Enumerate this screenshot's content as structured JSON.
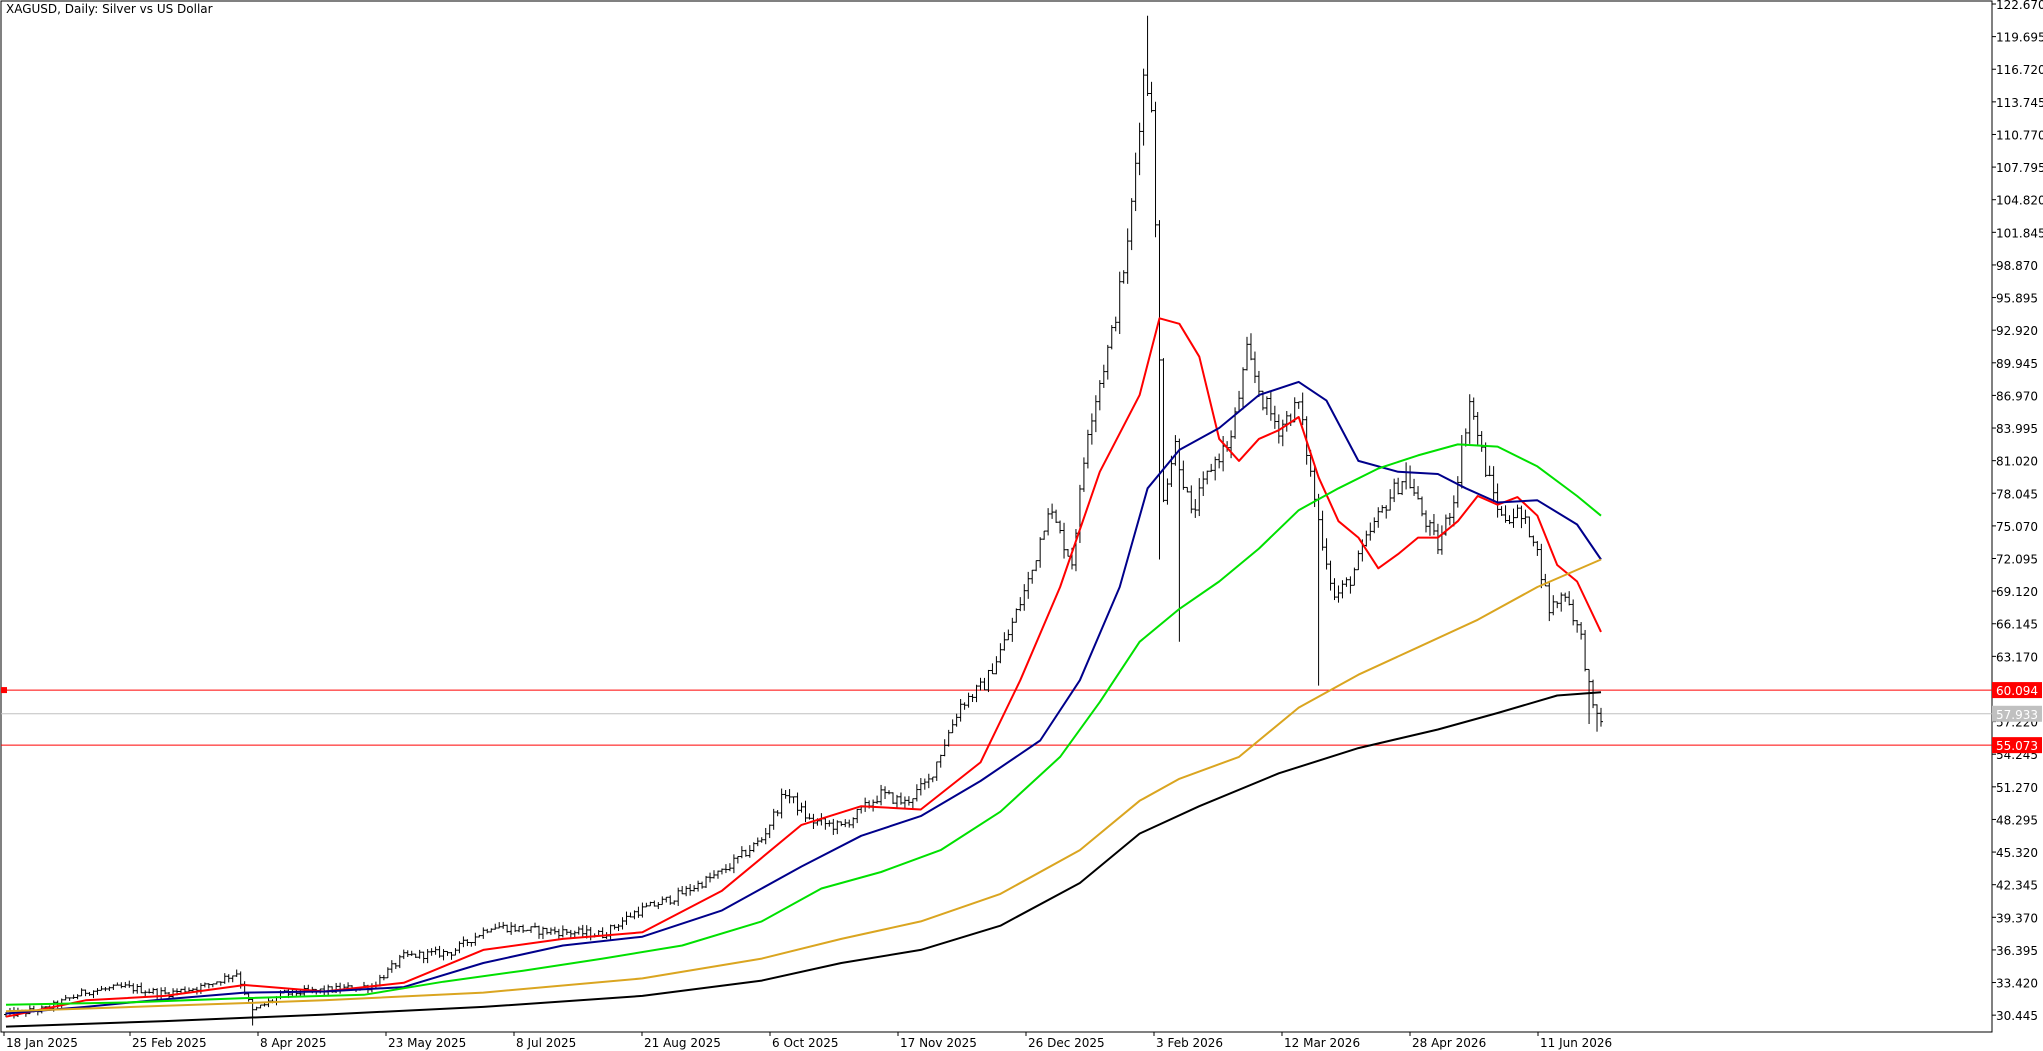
{
  "chart_data": {
    "type": "candlestick-ohlc",
    "title": "XAGUSD, Daily:  Silver vs US Dollar",
    "x_labels": [
      "18 Jan 2025",
      "25 Feb 2025",
      "8 Apr 2025",
      "23 May 2025",
      "8 Jul 2025",
      "21 Aug 2025",
      "6 Oct 2025",
      "17 Nov 2025",
      "26 Dec 2025",
      "3 Feb 2026",
      "12 Mar 2026",
      "28 Apr 2026",
      "11 Jun 2026"
    ],
    "y_ticks": [
      "122.670",
      "119.695",
      "116.720",
      "113.745",
      "110.770",
      "107.795",
      "104.820",
      "101.845",
      "98.870",
      "95.895",
      "92.920",
      "89.945",
      "86.970",
      "83.995",
      "81.020",
      "78.045",
      "75.070",
      "72.095",
      "69.120",
      "66.145",
      "63.170",
      "60.194",
      "57.220",
      "54.245",
      "51.270",
      "48.295",
      "45.320",
      "42.345",
      "39.370",
      "36.395",
      "33.420",
      "30.445"
    ],
    "ylim": [
      29.0,
      122.67
    ],
    "grid": false,
    "price_points": [
      {
        "i": 0,
        "p": 30.5
      },
      {
        "i": 10,
        "p": 31.0
      },
      {
        "i": 20,
        "p": 32.6
      },
      {
        "i": 30,
        "p": 33.0
      },
      {
        "i": 40,
        "p": 32.4
      },
      {
        "i": 50,
        "p": 33.1
      },
      {
        "i": 58,
        "p": 34.3
      },
      {
        "i": 62,
        "p": 30.8
      },
      {
        "i": 70,
        "p": 32.4
      },
      {
        "i": 80,
        "p": 32.7
      },
      {
        "i": 92,
        "p": 33.1
      },
      {
        "i": 100,
        "p": 35.8
      },
      {
        "i": 112,
        "p": 36.2
      },
      {
        "i": 122,
        "p": 38.6
      },
      {
        "i": 132,
        "p": 38.2
      },
      {
        "i": 142,
        "p": 38.0
      },
      {
        "i": 150,
        "p": 37.8
      },
      {
        "i": 158,
        "p": 39.8
      },
      {
        "i": 168,
        "p": 41.2
      },
      {
        "i": 180,
        "p": 43.5
      },
      {
        "i": 190,
        "p": 46.5
      },
      {
        "i": 196,
        "p": 50.8
      },
      {
        "i": 202,
        "p": 48.2
      },
      {
        "i": 210,
        "p": 47.6
      },
      {
        "i": 220,
        "p": 50.6
      },
      {
        "i": 226,
        "p": 49.8
      },
      {
        "i": 232,
        "p": 51.8
      },
      {
        "i": 240,
        "p": 58.8
      },
      {
        "i": 246,
        "p": 60.6
      },
      {
        "i": 252,
        "p": 65.2
      },
      {
        "i": 258,
        "p": 71.0
      },
      {
        "i": 262,
        "p": 76.8
      },
      {
        "i": 268,
        "p": 71.8
      },
      {
        "i": 272,
        "p": 84.0
      },
      {
        "i": 278,
        "p": 92.5
      },
      {
        "i": 282,
        "p": 100.5
      },
      {
        "i": 286,
        "p": 116.0
      },
      {
        "i": 288,
        "p": 114.0
      },
      {
        "i": 291,
        "p": 78.0
      },
      {
        "i": 294,
        "p": 82.5
      },
      {
        "i": 298,
        "p": 76.0
      },
      {
        "i": 303,
        "p": 80.5
      },
      {
        "i": 308,
        "p": 83.0
      },
      {
        "i": 312,
        "p": 90.8
      },
      {
        "i": 316,
        "p": 86.5
      },
      {
        "i": 320,
        "p": 84.0
      },
      {
        "i": 325,
        "p": 86.2
      },
      {
        "i": 330,
        "p": 75.5
      },
      {
        "i": 334,
        "p": 68.5
      },
      {
        "i": 338,
        "p": 70.2
      },
      {
        "i": 343,
        "p": 74.5
      },
      {
        "i": 348,
        "p": 77.8
      },
      {
        "i": 352,
        "p": 79.8
      },
      {
        "i": 356,
        "p": 76.2
      },
      {
        "i": 360,
        "p": 73.2
      },
      {
        "i": 364,
        "p": 77.5
      },
      {
        "i": 368,
        "p": 86.5
      },
      {
        "i": 372,
        "p": 80.2
      },
      {
        "i": 376,
        "p": 75.8
      },
      {
        "i": 380,
        "p": 76.2
      },
      {
        "i": 384,
        "p": 74.2
      },
      {
        "i": 388,
        "p": 67.5
      },
      {
        "i": 392,
        "p": 69.0
      },
      {
        "i": 396,
        "p": 64.8
      },
      {
        "i": 399,
        "p": 58.2
      },
      {
        "i": 401,
        "p": 57.5
      }
    ],
    "moving_averages": [
      {
        "color": "#ff0000",
        "points": [
          [
            0,
            30.3
          ],
          [
            20,
            31.8
          ],
          [
            40,
            32.2
          ],
          [
            60,
            33.2
          ],
          [
            80,
            32.6
          ],
          [
            100,
            33.4
          ],
          [
            120,
            36.4
          ],
          [
            140,
            37.4
          ],
          [
            160,
            38.0
          ],
          [
            180,
            41.8
          ],
          [
            200,
            47.8
          ],
          [
            215,
            49.5
          ],
          [
            230,
            49.2
          ],
          [
            245,
            53.5
          ],
          [
            255,
            61.0
          ],
          [
            265,
            69.5
          ],
          [
            275,
            80.0
          ],
          [
            285,
            87.0
          ],
          [
            290,
            94.0
          ],
          [
            295,
            93.5
          ],
          [
            300,
            90.5
          ],
          [
            305,
            83.0
          ],
          [
            310,
            81.0
          ],
          [
            315,
            83.0
          ],
          [
            320,
            83.8
          ],
          [
            325,
            85.0
          ],
          [
            330,
            79.5
          ],
          [
            335,
            75.5
          ],
          [
            340,
            74.0
          ],
          [
            345,
            71.2
          ],
          [
            350,
            72.5
          ],
          [
            355,
            74.0
          ],
          [
            360,
            74.0
          ],
          [
            365,
            75.5
          ],
          [
            370,
            77.8
          ],
          [
            375,
            77.0
          ],
          [
            380,
            77.7
          ],
          [
            385,
            76.0
          ],
          [
            390,
            71.5
          ],
          [
            395,
            70.0
          ],
          [
            401,
            65.4
          ]
        ]
      },
      {
        "color": "#00008b",
        "points": [
          [
            0,
            30.6
          ],
          [
            20,
            31.2
          ],
          [
            40,
            31.9
          ],
          [
            60,
            32.5
          ],
          [
            80,
            32.6
          ],
          [
            100,
            33.0
          ],
          [
            120,
            35.2
          ],
          [
            140,
            36.8
          ],
          [
            160,
            37.6
          ],
          [
            180,
            40.0
          ],
          [
            200,
            44.0
          ],
          [
            215,
            46.8
          ],
          [
            230,
            48.6
          ],
          [
            245,
            51.8
          ],
          [
            260,
            55.5
          ],
          [
            270,
            61.0
          ],
          [
            280,
            69.5
          ],
          [
            287,
            78.5
          ],
          [
            295,
            82.0
          ],
          [
            305,
            84.0
          ],
          [
            315,
            87.0
          ],
          [
            325,
            88.2
          ],
          [
            332,
            86.5
          ],
          [
            340,
            81.0
          ],
          [
            350,
            80.0
          ],
          [
            360,
            79.8
          ],
          [
            367,
            78.5
          ],
          [
            375,
            77.2
          ],
          [
            385,
            77.4
          ],
          [
            395,
            75.2
          ],
          [
            401,
            72.0
          ]
        ]
      },
      {
        "color": "#00e000",
        "points": [
          [
            0,
            31.4
          ],
          [
            30,
            31.6
          ],
          [
            60,
            32.0
          ],
          [
            90,
            32.3
          ],
          [
            110,
            33.5
          ],
          [
            130,
            34.5
          ],
          [
            150,
            35.6
          ],
          [
            170,
            36.8
          ],
          [
            190,
            39.0
          ],
          [
            205,
            42.0
          ],
          [
            220,
            43.5
          ],
          [
            235,
            45.5
          ],
          [
            250,
            49.0
          ],
          [
            265,
            54.0
          ],
          [
            275,
            59.0
          ],
          [
            285,
            64.5
          ],
          [
            295,
            67.5
          ],
          [
            305,
            70.0
          ],
          [
            315,
            73.0
          ],
          [
            325,
            76.5
          ],
          [
            335,
            78.5
          ],
          [
            345,
            80.3
          ],
          [
            355,
            81.5
          ],
          [
            365,
            82.5
          ],
          [
            375,
            82.3
          ],
          [
            385,
            80.5
          ],
          [
            395,
            77.8
          ],
          [
            401,
            76.0
          ]
        ]
      },
      {
        "color": "#daa520",
        "points": [
          [
            0,
            30.8
          ],
          [
            40,
            31.3
          ],
          [
            80,
            31.8
          ],
          [
            120,
            32.5
          ],
          [
            160,
            33.8
          ],
          [
            190,
            35.6
          ],
          [
            210,
            37.4
          ],
          [
            230,
            39.0
          ],
          [
            250,
            41.5
          ],
          [
            270,
            45.5
          ],
          [
            285,
            50.0
          ],
          [
            295,
            52.0
          ],
          [
            310,
            54.0
          ],
          [
            325,
            58.5
          ],
          [
            340,
            61.5
          ],
          [
            355,
            64.0
          ],
          [
            370,
            66.5
          ],
          [
            385,
            69.5
          ],
          [
            401,
            72.0
          ]
        ]
      },
      {
        "color": "#000000",
        "points": [
          [
            0,
            29.4
          ],
          [
            40,
            29.9
          ],
          [
            80,
            30.5
          ],
          [
            120,
            31.2
          ],
          [
            160,
            32.2
          ],
          [
            190,
            33.6
          ],
          [
            210,
            35.2
          ],
          [
            230,
            36.4
          ],
          [
            250,
            38.6
          ],
          [
            270,
            42.5
          ],
          [
            285,
            47.0
          ],
          [
            300,
            49.5
          ],
          [
            320,
            52.5
          ],
          [
            340,
            54.8
          ],
          [
            360,
            56.5
          ],
          [
            375,
            58.0
          ],
          [
            390,
            59.6
          ],
          [
            401,
            59.9
          ]
        ]
      }
    ],
    "horizontal_lines": [
      {
        "price": 60.094,
        "label": "60.094",
        "color": "#ff0000"
      },
      {
        "price": 57.933,
        "label": "57.933",
        "color": "#c0c0c0"
      },
      {
        "price": 55.073,
        "label": "55.073",
        "color": "#ff0000"
      }
    ]
  }
}
